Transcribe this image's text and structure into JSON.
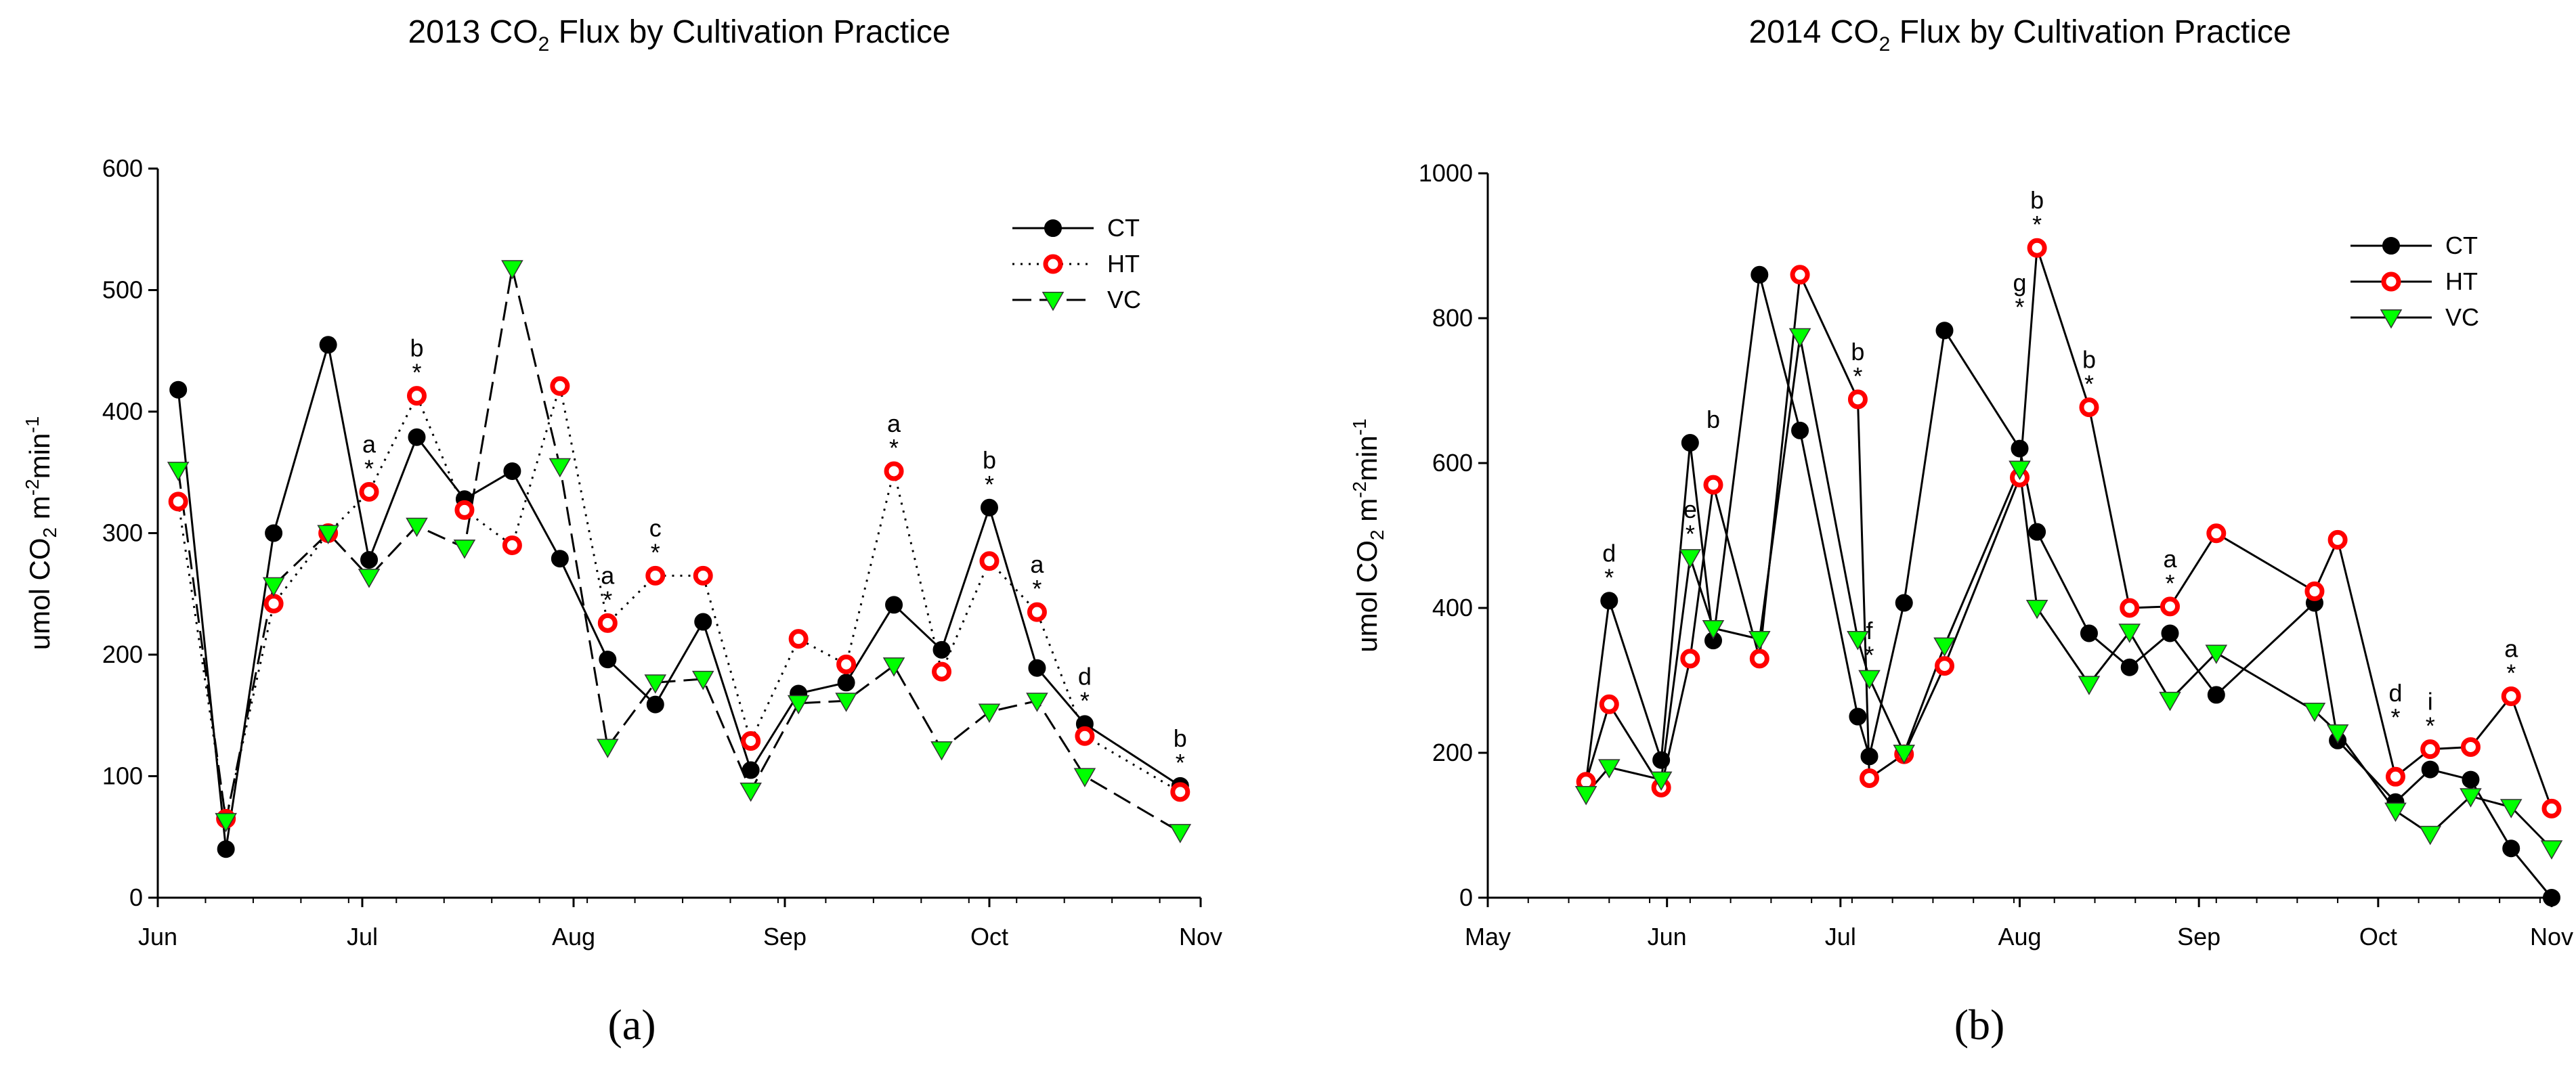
{
  "colors": {
    "ct": "#000000",
    "ht": "#ff0000",
    "vc": "#00ff00",
    "axis": "#000000"
  },
  "chart_data": [
    {
      "type": "line",
      "panel_label": "(a)",
      "title_prefix": "2013 CO",
      "title_sub": "2",
      "title_suffix": " Flux by Cultivation Practice",
      "ylabel_main": "umol CO",
      "ylabel_sub": "2",
      "ylabel_unit1": " m",
      "ylabel_sup1": "-2",
      "ylabel_unit2": "min",
      "ylabel_sup2": "-1",
      "ylim": [
        0,
        600
      ],
      "yticks": [
        0,
        100,
        200,
        300,
        400,
        500,
        600
      ],
      "xlim": [
        0,
        153
      ],
      "xtick_positions": [
        0,
        30,
        61,
        92,
        122,
        153
      ],
      "xtick_labels": [
        "Jun",
        "Jul",
        "Aug",
        "Sep",
        "Oct",
        "Nov"
      ],
      "series": [
        {
          "name": "CT",
          "style": "solid",
          "marker": "filled-circle",
          "x": [
            3,
            10,
            17,
            25,
            31,
            38,
            45,
            52,
            59,
            66,
            73,
            80,
            87,
            94,
            101,
            108,
            115,
            122,
            129,
            136,
            150
          ],
          "y": [
            418,
            40,
            300,
            455,
            278,
            379,
            328,
            351,
            279,
            196,
            159,
            227,
            105,
            168,
            177,
            241,
            204,
            321,
            189,
            143,
            92
          ]
        },
        {
          "name": "HT",
          "style": "dotted",
          "marker": "open-circle",
          "x": [
            3,
            10,
            17,
            25,
            31,
            38,
            45,
            52,
            59,
            66,
            73,
            80,
            87,
            94,
            101,
            108,
            115,
            122,
            129,
            136,
            150
          ],
          "y": [
            326,
            65,
            242,
            300,
            334,
            413,
            319,
            290,
            421,
            226,
            265,
            265,
            129,
            213,
            192,
            351,
            186,
            277,
            235,
            133,
            87
          ]
        },
        {
          "name": "VC",
          "style": "dashed",
          "marker": "down-triangle",
          "x": [
            3,
            10,
            17,
            25,
            31,
            38,
            45,
            52,
            59,
            66,
            73,
            80,
            87,
            94,
            101,
            108,
            115,
            122,
            129,
            136,
            150
          ],
          "y": [
            352,
            63,
            257,
            300,
            264,
            306,
            288,
            518,
            355,
            124,
            177,
            180,
            88,
            160,
            162,
            191,
            122,
            153,
            162,
            100,
            54
          ]
        }
      ],
      "annotations": [
        {
          "text": "a",
          "x": 31,
          "y": 334,
          "row": 2
        },
        {
          "text": "*",
          "x": 31,
          "y": 334,
          "row": 1
        },
        {
          "text": "b",
          "x": 38,
          "y": 413,
          "row": 2
        },
        {
          "text": "*",
          "x": 38,
          "y": 413,
          "row": 1
        },
        {
          "text": "a",
          "x": 66,
          "y": 226,
          "row": 2
        },
        {
          "text": "*",
          "x": 66,
          "y": 226,
          "row": 1
        },
        {
          "text": "c",
          "x": 73,
          "y": 265,
          "row": 2
        },
        {
          "text": "*",
          "x": 73,
          "y": 265,
          "row": 1
        },
        {
          "text": "a",
          "x": 108,
          "y": 351,
          "row": 2
        },
        {
          "text": "*",
          "x": 108,
          "y": 351,
          "row": 1
        },
        {
          "text": "b",
          "x": 122,
          "y": 321,
          "row": 2
        },
        {
          "text": "*",
          "x": 122,
          "y": 321,
          "row": 1
        },
        {
          "text": "a",
          "x": 129,
          "y": 235,
          "row": 2
        },
        {
          "text": "*",
          "x": 129,
          "y": 235,
          "row": 1
        },
        {
          "text": "d",
          "x": 136,
          "y": 143,
          "row": 2
        },
        {
          "text": "*",
          "x": 136,
          "y": 143,
          "row": 1
        },
        {
          "text": "b",
          "x": 150,
          "y": 92,
          "row": 2
        },
        {
          "text": "*",
          "x": 150,
          "y": 92,
          "row": 1
        }
      ],
      "legend_position": "top-right"
    },
    {
      "type": "line",
      "panel_label": "(b)",
      "title_prefix": "2014 CO",
      "title_sub": "2",
      "title_suffix": " Flux by Cultivation Practice",
      "ylabel_main": "umol CO",
      "ylabel_sub": "2",
      "ylabel_unit1": " m",
      "ylabel_sup1": "-2",
      "ylabel_unit2": "min",
      "ylabel_sup2": "-1",
      "ylim": [
        0,
        1000
      ],
      "yticks": [
        0,
        200,
        400,
        600,
        800,
        1000
      ],
      "xlim": [
        0,
        184
      ],
      "xtick_positions": [
        0,
        31,
        61,
        92,
        123,
        154,
        184
      ],
      "xtick_labels": [
        "May",
        "Jun",
        "Jul",
        "Aug",
        "Sep",
        "Oct",
        "Nov"
      ],
      "series": [
        {
          "name": "CT",
          "style": "solid",
          "marker": "filled-circle",
          "x": [
            17,
            21,
            30,
            35,
            39,
            47,
            54,
            64,
            66,
            72,
            79,
            92,
            95,
            104,
            111,
            118,
            126,
            143,
            147,
            157,
            163,
            170,
            177,
            184
          ],
          "y": [
            160,
            410,
            190,
            628,
            355,
            860,
            645,
            250,
            195,
            407,
            783,
            620,
            505,
            365,
            318,
            365,
            280,
            407,
            217,
            132,
            177,
            163,
            68,
            0
          ]
        },
        {
          "name": "HT",
          "style": "solid",
          "marker": "open-circle",
          "x": [
            17,
            21,
            30,
            35,
            39,
            47,
            54,
            64,
            66,
            72,
            79,
            92,
            95,
            104,
            111,
            118,
            126,
            143,
            147,
            157,
            163,
            170,
            177,
            184
          ],
          "y": [
            160,
            267,
            152,
            330,
            570,
            330,
            860,
            688,
            165,
            198,
            320,
            580,
            897,
            677,
            400,
            402,
            503,
            423,
            494,
            167,
            205,
            208,
            278,
            123
          ]
        },
        {
          "name": "VC",
          "style": "solid",
          "marker": "down-triangle",
          "x": [
            17,
            21,
            30,
            35,
            39,
            47,
            54,
            64,
            66,
            72,
            79,
            92,
            95,
            104,
            111,
            118,
            126,
            143,
            147,
            157,
            163,
            170,
            177,
            184
          ],
          "y": [
            143,
            180,
            163,
            470,
            372,
            357,
            775,
            357,
            303,
            200,
            348,
            592,
            400,
            295,
            367,
            273,
            338,
            258,
            228,
            120,
            88,
            140,
            125,
            68
          ]
        }
      ],
      "annotations": [
        {
          "text": "d",
          "x": 21,
          "y": 410,
          "row": 2
        },
        {
          "text": "*",
          "x": 21,
          "y": 410,
          "row": 1
        },
        {
          "text": "e",
          "x": 35,
          "y": 470,
          "row": 2
        },
        {
          "text": "*",
          "x": 35,
          "y": 470,
          "row": 1
        },
        {
          "text": "b",
          "x": 39,
          "y": 628,
          "row": 1
        },
        {
          "text": "b",
          "x": 64,
          "y": 688,
          "row": 2
        },
        {
          "text": "*",
          "x": 64,
          "y": 688,
          "row": 1
        },
        {
          "text": "f",
          "x": 66,
          "y": 303,
          "row": 2
        },
        {
          "text": "*",
          "x": 66,
          "y": 303,
          "row": 1
        },
        {
          "text": "g",
          "x": 92,
          "y": 783,
          "row": 2
        },
        {
          "text": "*",
          "x": 92,
          "y": 783,
          "row": 1
        },
        {
          "text": "b",
          "x": 95,
          "y": 897,
          "row": 2
        },
        {
          "text": "*",
          "x": 95,
          "y": 897,
          "row": 1
        },
        {
          "text": "b",
          "x": 104,
          "y": 677,
          "row": 2
        },
        {
          "text": "*",
          "x": 104,
          "y": 677,
          "row": 1
        },
        {
          "text": "a",
          "x": 118,
          "y": 402,
          "row": 2
        },
        {
          "text": "*",
          "x": 118,
          "y": 402,
          "row": 1
        },
        {
          "text": "d",
          "x": 157,
          "y": 217,
          "row": 2
        },
        {
          "text": "*",
          "x": 157,
          "y": 217,
          "row": 1
        },
        {
          "text": "i",
          "x": 163,
          "y": 205,
          "row": 2
        },
        {
          "text": "*",
          "x": 163,
          "y": 205,
          "row": 1
        },
        {
          "text": "a",
          "x": 177,
          "y": 278,
          "row": 2
        },
        {
          "text": "*",
          "x": 177,
          "y": 278,
          "row": 1
        }
      ],
      "legend_position": "top-right"
    }
  ]
}
